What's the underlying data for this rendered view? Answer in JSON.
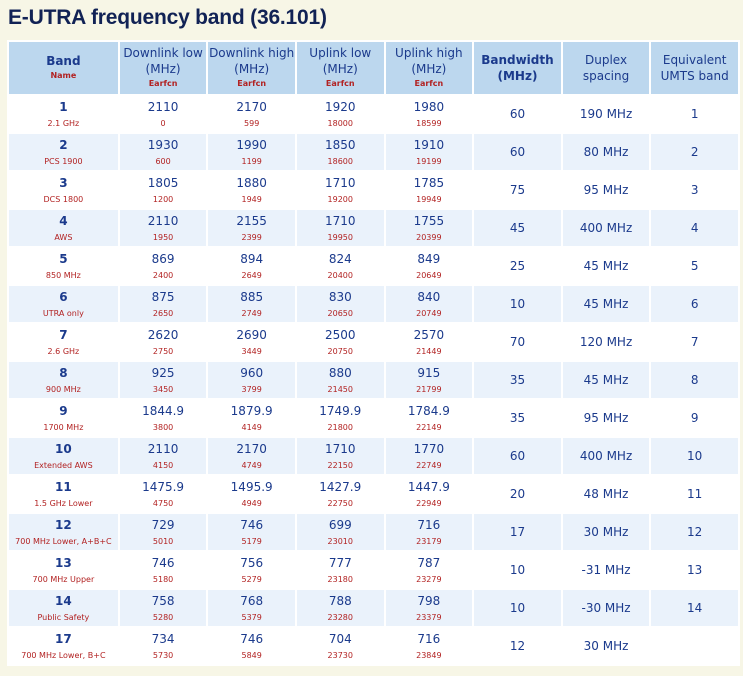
{
  "title": "E-UTRA frequency band (36.101)",
  "header": {
    "band": "Band",
    "band_sub": "Name",
    "dl_low": "Downlink low (MHz)",
    "dl_low_sub": "Earfcn",
    "dl_high": "Downlink high (MHz)",
    "dl_high_sub": "Earfcn",
    "ul_low": "Uplink low (MHz)",
    "ul_low_sub": "Earfcn",
    "ul_high": "Uplink high (MHz)",
    "ul_high_sub": "Earfcn",
    "bandwidth": "Bandwidth (MHz)",
    "duplex": "Duplex spacing",
    "umts": "Equivalent UMTS band"
  },
  "rows": [
    {
      "band": "1",
      "name": "2.1 GHz",
      "dl_low": "2110",
      "dl_low_e": "0",
      "dl_high": "2170",
      "dl_high_e": "599",
      "ul_low": "1920",
      "ul_low_e": "18000",
      "ul_high": "1980",
      "ul_high_e": "18599",
      "bw": "60",
      "duplex": "190 MHz",
      "umts": "1"
    },
    {
      "band": "2",
      "name": "PCS 1900",
      "dl_low": "1930",
      "dl_low_e": "600",
      "dl_high": "1990",
      "dl_high_e": "1199",
      "ul_low": "1850",
      "ul_low_e": "18600",
      "ul_high": "1910",
      "ul_high_e": "19199",
      "bw": "60",
      "duplex": "80 MHz",
      "umts": "2"
    },
    {
      "band": "3",
      "name": "DCS 1800",
      "dl_low": "1805",
      "dl_low_e": "1200",
      "dl_high": "1880",
      "dl_high_e": "1949",
      "ul_low": "1710",
      "ul_low_e": "19200",
      "ul_high": "1785",
      "ul_high_e": "19949",
      "bw": "75",
      "duplex": "95 MHz",
      "umts": "3"
    },
    {
      "band": "4",
      "name": "AWS",
      "dl_low": "2110",
      "dl_low_e": "1950",
      "dl_high": "2155",
      "dl_high_e": "2399",
      "ul_low": "1710",
      "ul_low_e": "19950",
      "ul_high": "1755",
      "ul_high_e": "20399",
      "bw": "45",
      "duplex": "400 MHz",
      "umts": "4"
    },
    {
      "band": "5",
      "name": "850 MHz",
      "dl_low": "869",
      "dl_low_e": "2400",
      "dl_high": "894",
      "dl_high_e": "2649",
      "ul_low": "824",
      "ul_low_e": "20400",
      "ul_high": "849",
      "ul_high_e": "20649",
      "bw": "25",
      "duplex": "45 MHz",
      "umts": "5"
    },
    {
      "band": "6",
      "name": "UTRA only",
      "dl_low": "875",
      "dl_low_e": "2650",
      "dl_high": "885",
      "dl_high_e": "2749",
      "ul_low": "830",
      "ul_low_e": "20650",
      "ul_high": "840",
      "ul_high_e": "20749",
      "bw": "10",
      "duplex": "45 MHz",
      "umts": "6"
    },
    {
      "band": "7",
      "name": "2.6 GHz",
      "dl_low": "2620",
      "dl_low_e": "2750",
      "dl_high": "2690",
      "dl_high_e": "3449",
      "ul_low": "2500",
      "ul_low_e": "20750",
      "ul_high": "2570",
      "ul_high_e": "21449",
      "bw": "70",
      "duplex": "120 MHz",
      "umts": "7"
    },
    {
      "band": "8",
      "name": "900 MHz",
      "dl_low": "925",
      "dl_low_e": "3450",
      "dl_high": "960",
      "dl_high_e": "3799",
      "ul_low": "880",
      "ul_low_e": "21450",
      "ul_high": "915",
      "ul_high_e": "21799",
      "bw": "35",
      "duplex": "45 MHz",
      "umts": "8"
    },
    {
      "band": "9",
      "name": "1700 MHz",
      "dl_low": "1844.9",
      "dl_low_e": "3800",
      "dl_high": "1879.9",
      "dl_high_e": "4149",
      "ul_low": "1749.9",
      "ul_low_e": "21800",
      "ul_high": "1784.9",
      "ul_high_e": "22149",
      "bw": "35",
      "duplex": "95 MHz",
      "umts": "9"
    },
    {
      "band": "10",
      "name": "Extended AWS",
      "dl_low": "2110",
      "dl_low_e": "4150",
      "dl_high": "2170",
      "dl_high_e": "4749",
      "ul_low": "1710",
      "ul_low_e": "22150",
      "ul_high": "1770",
      "ul_high_e": "22749",
      "bw": "60",
      "duplex": "400 MHz",
      "umts": "10"
    },
    {
      "band": "11",
      "name": "1.5 GHz Lower",
      "dl_low": "1475.9",
      "dl_low_e": "4750",
      "dl_high": "1495.9",
      "dl_high_e": "4949",
      "ul_low": "1427.9",
      "ul_low_e": "22750",
      "ul_high": "1447.9",
      "ul_high_e": "22949",
      "bw": "20",
      "duplex": "48 MHz",
      "umts": "11"
    },
    {
      "band": "12",
      "name": "700 MHz Lower, A+B+C",
      "dl_low": "729",
      "dl_low_e": "5010",
      "dl_high": "746",
      "dl_high_e": "5179",
      "ul_low": "699",
      "ul_low_e": "23010",
      "ul_high": "716",
      "ul_high_e": "23179",
      "bw": "17",
      "duplex": "30 MHz",
      "umts": "12"
    },
    {
      "band": "13",
      "name": "700 MHz Upper",
      "dl_low": "746",
      "dl_low_e": "5180",
      "dl_high": "756",
      "dl_high_e": "5279",
      "ul_low": "777",
      "ul_low_e": "23180",
      "ul_high": "787",
      "ul_high_e": "23279",
      "bw": "10",
      "duplex": "-31 MHz",
      "umts": "13"
    },
    {
      "band": "14",
      "name": "Public Safety",
      "dl_low": "758",
      "dl_low_e": "5280",
      "dl_high": "768",
      "dl_high_e": "5379",
      "ul_low": "788",
      "ul_low_e": "23280",
      "ul_high": "798",
      "ul_high_e": "23379",
      "bw": "10",
      "duplex": "-30 MHz",
      "umts": "14"
    },
    {
      "band": "17",
      "name": "700 MHz Lower, B+C",
      "dl_low": "734",
      "dl_low_e": "5730",
      "dl_high": "746",
      "dl_high_e": "5849",
      "ul_low": "704",
      "ul_low_e": "23730",
      "ul_high": "716",
      "ul_high_e": "23849",
      "bw": "12",
      "duplex": "30 MHz",
      "umts": ""
    }
  ]
}
